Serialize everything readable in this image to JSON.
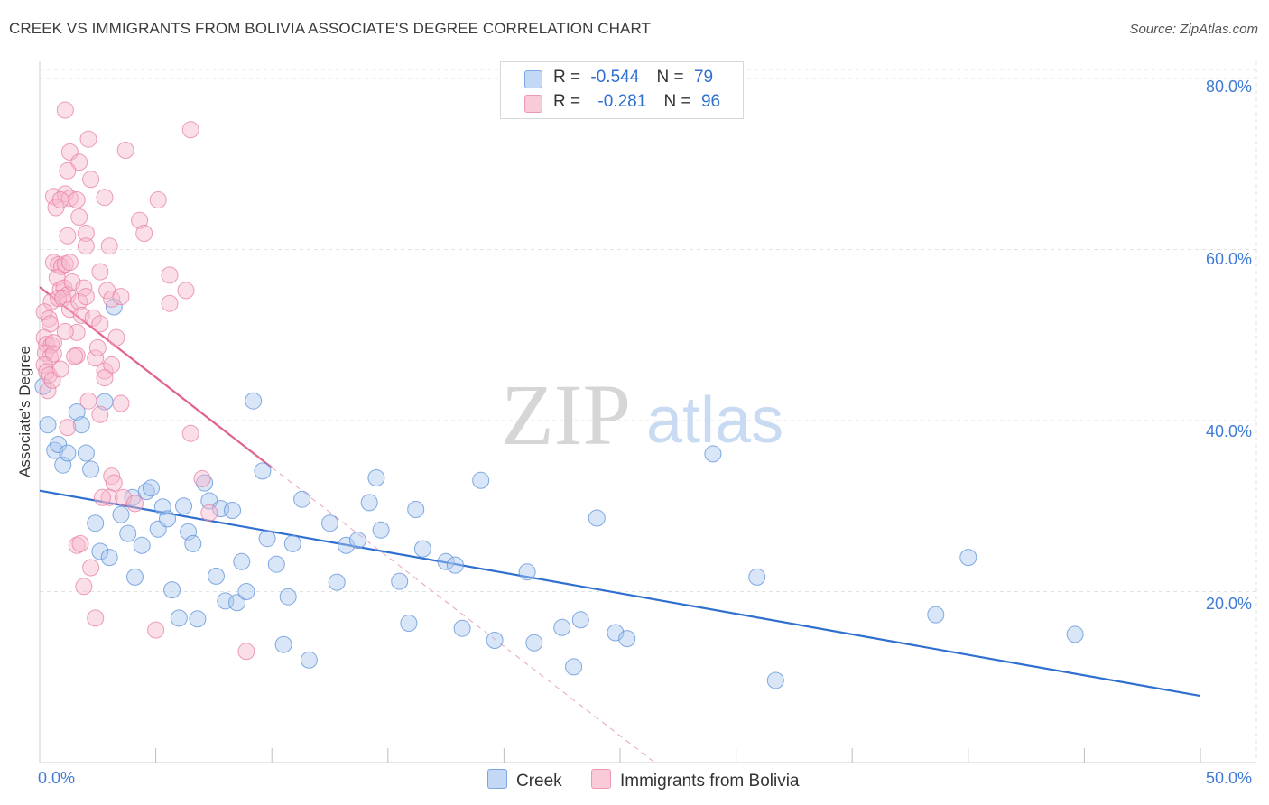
{
  "header": {
    "title": "CREEK VS IMMIGRANTS FROM BOLIVIA ASSOCIATE'S DEGREE CORRELATION CHART",
    "source": "Source: ZipAtlas.com"
  },
  "watermark": {
    "zip": "ZIP",
    "atlas": "atlas"
  },
  "stats": {
    "creek": {
      "r_label": "R =",
      "r_value": "-0.544",
      "n_label": "N =",
      "n_value": "79"
    },
    "bolivia": {
      "r_label": "R =",
      "r_value": "-0.281",
      "n_label": "N =",
      "n_value": "96"
    }
  },
  "legend": {
    "creek": "Creek",
    "bolivia": "Immigrants from Bolivia"
  },
  "colors": {
    "creek_fill": "#aac8f0",
    "creek_stroke": "#5b8fd8",
    "creek_line": "#2f6fd0",
    "bolivia_fill": "#f7b8cb",
    "bolivia_stroke": "#e77fa0",
    "bolivia_line": "#e0648c",
    "tick_text": "#3f7ad6",
    "grid": "#e2e2e2"
  },
  "chart_data": {
    "type": "scatter",
    "title": "CREEK VS IMMIGRANTS FROM BOLIVIA ASSOCIATE'S DEGREE CORRELATION CHART",
    "xlabel": "",
    "ylabel": "Associate's Degree",
    "xlim": [
      0,
      50
    ],
    "ylim": [
      0,
      82
    ],
    "x_tick_labels": [
      "0.0%",
      "50.0%"
    ],
    "y_ticks": [
      20,
      40,
      60,
      80
    ],
    "y_tick_labels": [
      "20.0%",
      "40.0%",
      "60.0%",
      "80.0%"
    ],
    "grid": true,
    "series": [
      {
        "name": "Creek",
        "trend": {
          "x": [
            0,
            50
          ],
          "y": [
            31.8,
            7.8
          ]
        },
        "points": [
          [
            0.35,
            39.5
          ],
          [
            0.65,
            36.5
          ],
          [
            0.8,
            37.2
          ],
          [
            1.0,
            34.8
          ],
          [
            1.2,
            36.2
          ],
          [
            1.6,
            41.0
          ],
          [
            1.8,
            39.5
          ],
          [
            2.0,
            36.2
          ],
          [
            2.2,
            34.3
          ],
          [
            2.4,
            28.0
          ],
          [
            2.6,
            24.7
          ],
          [
            2.8,
            42.2
          ],
          [
            3.0,
            24.0
          ],
          [
            3.2,
            53.3
          ],
          [
            3.5,
            29.0
          ],
          [
            3.8,
            26.8
          ],
          [
            4.0,
            31.0
          ],
          [
            4.1,
            21.7
          ],
          [
            4.4,
            25.4
          ],
          [
            4.6,
            31.7
          ],
          [
            4.8,
            32.1
          ],
          [
            5.1,
            27.3
          ],
          [
            5.3,
            29.9
          ],
          [
            5.5,
            28.5
          ],
          [
            5.7,
            20.2
          ],
          [
            6.0,
            16.9
          ],
          [
            6.2,
            30.0
          ],
          [
            6.4,
            27.0
          ],
          [
            6.6,
            25.6
          ],
          [
            6.8,
            16.8
          ],
          [
            7.1,
            32.7
          ],
          [
            7.3,
            30.6
          ],
          [
            7.6,
            21.8
          ],
          [
            7.8,
            29.7
          ],
          [
            8.0,
            18.9
          ],
          [
            8.3,
            29.5
          ],
          [
            8.5,
            18.7
          ],
          [
            8.7,
            23.5
          ],
          [
            8.9,
            20.0
          ],
          [
            9.2,
            42.3
          ],
          [
            9.6,
            34.1
          ],
          [
            9.8,
            26.2
          ],
          [
            10.2,
            23.2
          ],
          [
            10.5,
            13.8
          ],
          [
            10.7,
            19.4
          ],
          [
            10.9,
            25.6
          ],
          [
            11.3,
            30.8
          ],
          [
            11.6,
            12.0
          ],
          [
            12.5,
            28.0
          ],
          [
            12.8,
            21.1
          ],
          [
            13.2,
            25.4
          ],
          [
            13.7,
            26.0
          ],
          [
            14.2,
            30.4
          ],
          [
            14.5,
            33.3
          ],
          [
            14.7,
            27.2
          ],
          [
            15.5,
            21.2
          ],
          [
            15.9,
            16.3
          ],
          [
            16.2,
            29.6
          ],
          [
            16.5,
            25.0
          ],
          [
            17.5,
            23.5
          ],
          [
            17.9,
            23.1
          ],
          [
            18.2,
            15.7
          ],
          [
            19.0,
            33.0
          ],
          [
            19.6,
            14.3
          ],
          [
            21.0,
            22.3
          ],
          [
            21.3,
            14.0
          ],
          [
            22.5,
            15.8
          ],
          [
            23.0,
            11.2
          ],
          [
            23.3,
            16.7
          ],
          [
            24.0,
            28.6
          ],
          [
            24.8,
            15.2
          ],
          [
            25.3,
            14.5
          ],
          [
            29.0,
            36.1
          ],
          [
            30.9,
            21.7
          ],
          [
            31.7,
            9.6
          ],
          [
            38.6,
            17.3
          ],
          [
            40.0,
            24.0
          ],
          [
            44.6,
            15.0
          ],
          [
            0.15,
            44.0
          ]
        ]
      },
      {
        "name": "Immigrants from Bolivia",
        "trend": {
          "x": [
            0,
            10
          ],
          "y": [
            55.6,
            34.5
          ]
        },
        "trend_extension": {
          "x": [
            10,
            26.5
          ],
          "y": [
            34.5,
            0
          ]
        },
        "points": [
          [
            1.1,
            76.3
          ],
          [
            1.3,
            71.4
          ],
          [
            1.7,
            70.2
          ],
          [
            1.2,
            69.2
          ],
          [
            2.1,
            72.9
          ],
          [
            3.7,
            71.6
          ],
          [
            6.5,
            74.0
          ],
          [
            2.2,
            68.2
          ],
          [
            0.6,
            66.2
          ],
          [
            0.7,
            64.9
          ],
          [
            1.1,
            66.5
          ],
          [
            1.3,
            66.0
          ],
          [
            1.6,
            65.8
          ],
          [
            1.7,
            63.8
          ],
          [
            0.9,
            65.8
          ],
          [
            2.0,
            61.9
          ],
          [
            2.8,
            66.1
          ],
          [
            4.3,
            63.4
          ],
          [
            4.5,
            61.9
          ],
          [
            5.1,
            65.8
          ],
          [
            1.2,
            61.6
          ],
          [
            2.0,
            60.4
          ],
          [
            3.0,
            60.4
          ],
          [
            0.6,
            58.5
          ],
          [
            0.8,
            58.2
          ],
          [
            0.95,
            58.0
          ],
          [
            1.1,
            58.3
          ],
          [
            1.3,
            58.5
          ],
          [
            0.75,
            56.7
          ],
          [
            0.9,
            55.3
          ],
          [
            1.05,
            55.5
          ],
          [
            1.2,
            54.7
          ],
          [
            1.4,
            56.2
          ],
          [
            1.9,
            55.5
          ],
          [
            2.6,
            57.4
          ],
          [
            2.9,
            55.2
          ],
          [
            5.6,
            57.0
          ],
          [
            6.3,
            55.2
          ],
          [
            0.5,
            53.9
          ],
          [
            0.8,
            54.3
          ],
          [
            1.0,
            54.3
          ],
          [
            1.3,
            53.0
          ],
          [
            1.7,
            53.9
          ],
          [
            2.0,
            54.5
          ],
          [
            3.1,
            54.2
          ],
          [
            3.5,
            54.5
          ],
          [
            5.6,
            53.7
          ],
          [
            0.2,
            52.7
          ],
          [
            0.4,
            51.9
          ],
          [
            0.45,
            51.3
          ],
          [
            1.8,
            52.3
          ],
          [
            2.3,
            52.0
          ],
          [
            2.6,
            51.3
          ],
          [
            1.6,
            50.3
          ],
          [
            0.2,
            49.7
          ],
          [
            0.3,
            48.9
          ],
          [
            0.5,
            48.8
          ],
          [
            0.6,
            49.1
          ],
          [
            3.3,
            49.7
          ],
          [
            0.25,
            47.9
          ],
          [
            0.45,
            47.4
          ],
          [
            0.6,
            47.8
          ],
          [
            1.6,
            47.6
          ],
          [
            2.4,
            47.3
          ],
          [
            0.2,
            46.5
          ],
          [
            0.3,
            45.7
          ],
          [
            0.4,
            45.3
          ],
          [
            2.8,
            45.8
          ],
          [
            3.1,
            46.5
          ],
          [
            2.8,
            45.0
          ],
          [
            0.35,
            43.5
          ],
          [
            2.1,
            42.3
          ],
          [
            2.6,
            40.7
          ],
          [
            3.5,
            42.0
          ],
          [
            1.2,
            39.2
          ],
          [
            6.5,
            38.5
          ],
          [
            3.1,
            33.5
          ],
          [
            3.2,
            32.7
          ],
          [
            3.0,
            31.0
          ],
          [
            3.6,
            31.0
          ],
          [
            4.1,
            30.3
          ],
          [
            7.0,
            33.2
          ],
          [
            7.3,
            29.2
          ],
          [
            2.7,
            31.0
          ],
          [
            1.6,
            25.4
          ],
          [
            1.75,
            25.6
          ],
          [
            2.2,
            22.8
          ],
          [
            1.9,
            20.6
          ],
          [
            2.4,
            16.9
          ],
          [
            5.0,
            15.5
          ],
          [
            8.9,
            13.0
          ],
          [
            0.55,
            44.7
          ],
          [
            0.9,
            46.0
          ],
          [
            1.1,
            50.4
          ],
          [
            1.5,
            47.5
          ],
          [
            2.5,
            48.5
          ]
        ]
      }
    ]
  }
}
